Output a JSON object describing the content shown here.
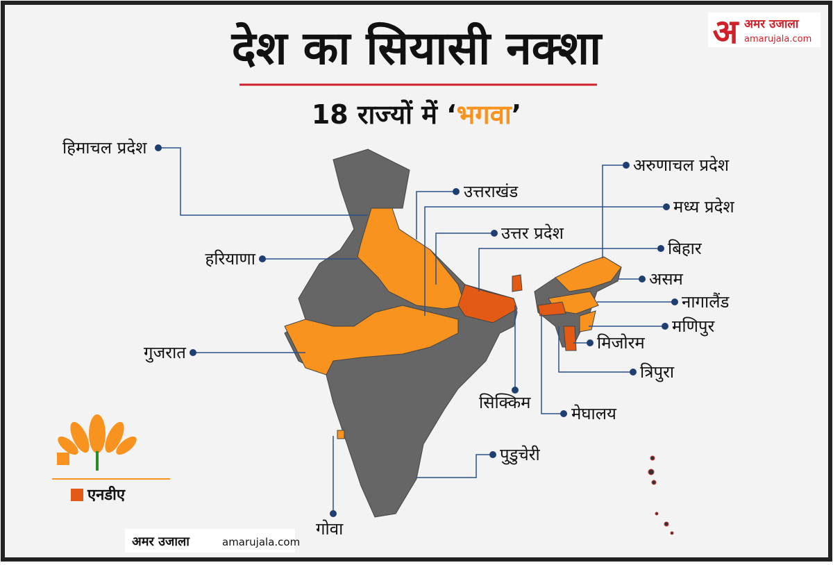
{
  "header": {
    "title": "देश का सियासी नक्शा",
    "subtitle": [
      "18 राज्यों में ",
      "‘",
      "भगवा",
      "’"
    ],
    "highlight_color": "#f7931e"
  },
  "brand": {
    "logo_letter": "अ",
    "name": "अमर उजाला",
    "site": "amarujala.com"
  },
  "labels": [
    {
      "text": "हिमाचल प्रदेश"
    },
    {
      "text": "उत्तराखंड"
    },
    {
      "text": "उत्तर प्रदेश"
    },
    {
      "text": "हरियाणा"
    },
    {
      "text": "गुजरात"
    },
    {
      "text": "अरुणाचल प्रदेश"
    },
    {
      "text": "मध्य प्रदेश"
    },
    {
      "text": "बिहार"
    },
    {
      "text": "असम"
    },
    {
      "text": "नागालैंड"
    },
    {
      "text": "मणिपुर"
    },
    {
      "text": "मिजोरम"
    },
    {
      "text": "त्रिपुरा"
    },
    {
      "text": "मेघालय"
    },
    {
      "text": "सिक्किम"
    },
    {
      "text": "पुडुचेरी"
    },
    {
      "text": "गोवा"
    }
  ],
  "legend": {
    "bjp_color": "#f7931e",
    "nda_color": "#e35a14",
    "nda_label": "एनडीए"
  },
  "footer": {
    "brand": "अमर उजाला",
    "site": "amarujala.com"
  }
}
